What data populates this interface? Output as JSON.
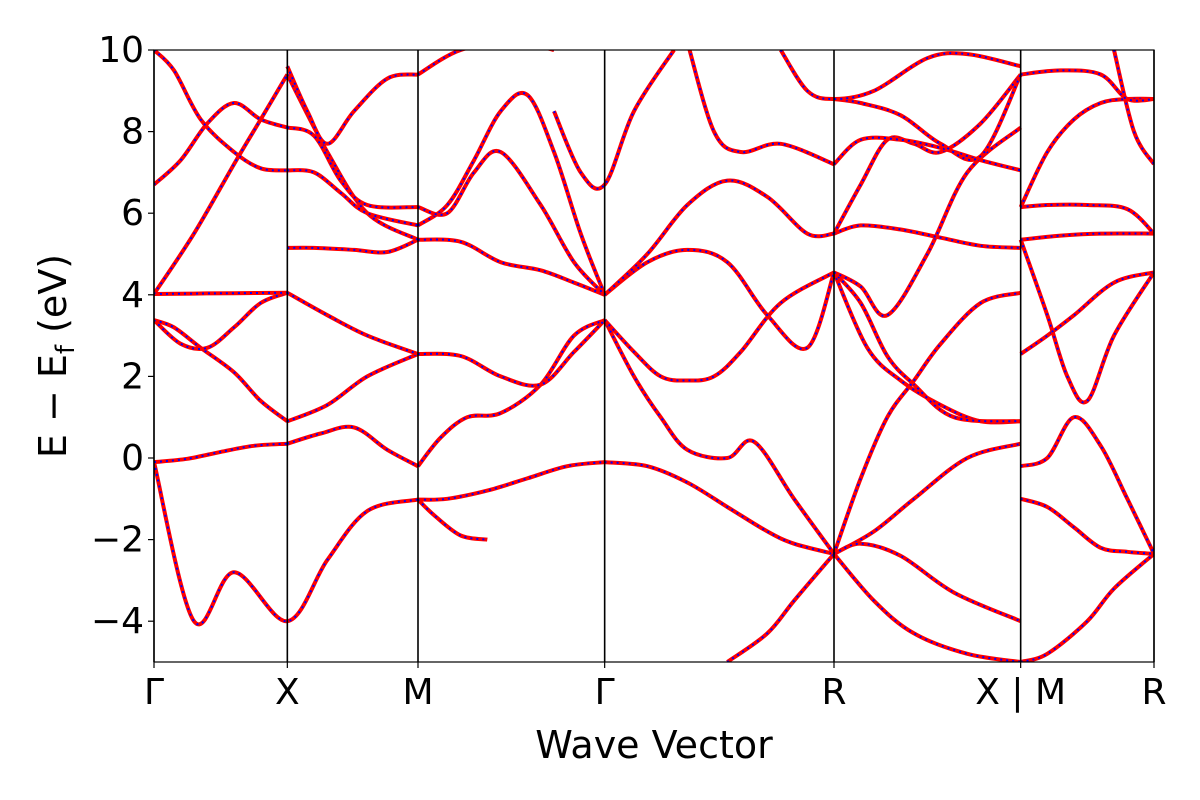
{
  "chart_data": {
    "type": "line",
    "xlabel": "Wave Vector",
    "ylabel_parts": {
      "main": "E − E",
      "sub": "f",
      "unit": " (eV)"
    },
    "ylim": [
      -5,
      10
    ],
    "yticks": [
      -4,
      -2,
      0,
      2,
      4,
      6,
      8,
      10
    ],
    "ytick_labels": [
      "−4",
      "−2",
      "0",
      "2",
      "4",
      "6",
      "8",
      "10"
    ],
    "xlim": [
      0,
      7.5
    ],
    "high_symmetry_points": [
      {
        "label": "Γ",
        "x": 0
      },
      {
        "label": "X",
        "x": 1.0
      },
      {
        "label": "M",
        "x": 1.98
      },
      {
        "label": "Γ",
        "x": 3.38
      },
      {
        "label": "R",
        "x": 5.1
      },
      {
        "label": "X | M",
        "x": 6.5
      },
      {
        "label": "R",
        "x": 7.5
      }
    ],
    "grid": false,
    "series_colors": {
      "overlay": "#ff0000",
      "dashed": "#0000ff"
    },
    "series": [
      {
        "x": [
          0,
          0.3,
          0.6,
          1.0,
          1.3,
          1.6,
          1.98
        ],
        "y": [
          -0.1,
          -4.0,
          -2.8,
          -4.0,
          -2.5,
          -1.3,
          -1.02
        ]
      },
      {
        "x": [
          0,
          0.25,
          0.5,
          0.75,
          1.0
        ],
        "y": [
          -0.1,
          -0.02,
          0.15,
          0.3,
          0.35
        ]
      },
      {
        "x": [
          1.0,
          1.25,
          1.5,
          1.75,
          1.98
        ],
        "y": [
          0.35,
          0.6,
          0.75,
          0.2,
          -0.2
        ]
      },
      {
        "x": [
          1.98,
          2.15,
          2.35,
          2.6,
          2.9,
          3.15,
          3.38
        ],
        "y": [
          -0.2,
          0.5,
          1.0,
          1.1,
          1.8,
          3.0,
          3.38
        ]
      },
      {
        "x": [
          1.98,
          2.2,
          2.5,
          2.8,
          3.1,
          3.38
        ],
        "y": [
          -1.02,
          -1.0,
          -0.8,
          -0.5,
          -0.2,
          -0.1
        ]
      },
      {
        "x": [
          1.98,
          2.1,
          2.3,
          2.5
        ],
        "y": [
          -1.02,
          -1.4,
          -1.9,
          -2.0
        ]
      },
      {
        "x": [
          0,
          0.15,
          0.35,
          0.6,
          0.8,
          1.0
        ],
        "y": [
          3.38,
          3.2,
          2.7,
          2.1,
          1.4,
          0.9
        ]
      },
      {
        "x": [
          1.0,
          1.3,
          1.6,
          1.98
        ],
        "y": [
          0.9,
          1.3,
          2.0,
          2.55
        ]
      },
      {
        "x": [
          1.98,
          2.3,
          2.6,
          2.9,
          3.15,
          3.38
        ],
        "y": [
          2.55,
          2.5,
          2.0,
          1.8,
          2.6,
          3.38
        ]
      },
      {
        "x": [
          0,
          0.2,
          0.4,
          0.6,
          0.8,
          1.0
        ],
        "y": [
          3.38,
          2.8,
          2.7,
          3.2,
          3.8,
          4.05
        ]
      },
      {
        "x": [
          0,
          0.3,
          0.6,
          1.0
        ],
        "y": [
          4.02,
          4.03,
          4.04,
          4.05
        ]
      },
      {
        "x": [
          1.0,
          1.3,
          1.6,
          1.98
        ],
        "y": [
          4.05,
          3.5,
          3.0,
          2.55
        ]
      },
      {
        "x": [
          1.0,
          1.2,
          1.5,
          1.75,
          1.98
        ],
        "y": [
          5.15,
          5.15,
          5.1,
          5.05,
          5.35
        ]
      },
      {
        "x": [
          1.98,
          2.3,
          2.6,
          2.9,
          3.15,
          3.38
        ],
        "y": [
          5.35,
          5.3,
          4.8,
          4.6,
          4.3,
          4.0
        ]
      },
      {
        "x": [
          0,
          0.3,
          0.6,
          0.8,
          1.0
        ],
        "y": [
          4.02,
          5.5,
          7.2,
          8.3,
          9.4
        ]
      },
      {
        "x": [
          1.0,
          1.3,
          1.6,
          1.98
        ],
        "y": [
          9.4,
          7.5,
          6.0,
          5.35
        ]
      },
      {
        "x": [
          0,
          0.2,
          0.4,
          0.6,
          0.8,
          1.0
        ],
        "y": [
          6.7,
          7.3,
          8.2,
          8.7,
          8.3,
          8.1
        ]
      },
      {
        "x": [
          1.0,
          1.2,
          1.4,
          1.6,
          1.98
        ],
        "y": [
          8.1,
          7.9,
          6.8,
          6.2,
          6.15
        ]
      },
      {
        "x": [
          0,
          0.15,
          0.35,
          0.6,
          0.8,
          1.0
        ],
        "y": [
          10.0,
          9.5,
          8.3,
          7.5,
          7.1,
          7.05
        ]
      },
      {
        "x": [
          1.0,
          1.2,
          1.4,
          1.6,
          1.98
        ],
        "y": [
          7.05,
          7.0,
          6.5,
          6.0,
          5.7
        ]
      },
      {
        "x": [
          1.98,
          2.2,
          2.4,
          2.6,
          2.8,
          3.0,
          3.2,
          3.38
        ],
        "y": [
          5.7,
          6.2,
          7.3,
          8.5,
          8.9,
          7.5,
          5.5,
          4.0
        ]
      },
      {
        "x": [
          1.98,
          2.2,
          2.4,
          2.6,
          2.9,
          3.15,
          3.38
        ],
        "y": [
          6.15,
          6.0,
          7.0,
          7.5,
          6.2,
          4.8,
          4.0
        ]
      },
      {
        "x": [
          1.0,
          1.15,
          1.3,
          1.5,
          1.75,
          1.98
        ],
        "y": [
          9.6,
          8.5,
          7.7,
          8.5,
          9.3,
          9.4
        ]
      },
      {
        "x": [
          1.98,
          2.3,
          2.7,
          3.0
        ],
        "y": [
          9.4,
          10.0,
          10.2,
          10.0
        ]
      },
      {
        "x": [
          3.0,
          3.2,
          3.38,
          3.6,
          3.9
        ],
        "y": [
          8.5,
          7.0,
          6.7,
          8.5,
          10.0
        ]
      },
      {
        "x": [
          4.0,
          4.2,
          4.4,
          4.7,
          5.1
        ],
        "y": [
          10.2,
          8.0,
          7.5,
          7.7,
          7.2
        ]
      },
      {
        "x": [
          3.38,
          3.7,
          4.0,
          4.3,
          4.6,
          4.8,
          5.1
        ],
        "y": [
          -0.1,
          -0.2,
          -0.6,
          -1.2,
          -1.8,
          -2.1,
          -2.35
        ]
      },
      {
        "x": [
          3.38,
          3.6,
          3.8,
          4.0,
          4.3,
          4.5,
          4.8,
          5.1
        ],
        "y": [
          3.38,
          2.0,
          1.0,
          0.2,
          0.0,
          0.4,
          -1.0,
          -2.35
        ]
      },
      {
        "x": [
          3.38,
          3.6,
          3.8,
          4.0,
          4.2,
          4.4,
          4.7,
          5.1
        ],
        "y": [
          3.38,
          2.6,
          2.0,
          1.9,
          2.0,
          2.6,
          3.8,
          4.55
        ]
      },
      {
        "x": [
          3.38,
          3.7,
          4.0,
          4.3,
          4.6,
          4.9,
          5.1
        ],
        "y": [
          4.0,
          4.8,
          5.1,
          4.8,
          3.5,
          2.7,
          4.55
        ]
      },
      {
        "x": [
          3.38,
          3.7,
          4.0,
          4.3,
          4.6,
          4.9,
          5.1
        ],
        "y": [
          4.0,
          5.0,
          6.2,
          6.8,
          6.4,
          5.5,
          5.5
        ]
      },
      {
        "x": [
          4.3,
          4.6,
          4.8,
          5.1
        ],
        "y": [
          -5.0,
          -4.3,
          -3.5,
          -2.35
        ]
      },
      {
        "x": [
          5.1,
          5.4,
          5.7,
          6.1,
          6.5
        ],
        "y": [
          -2.35,
          -3.5,
          -4.3,
          -4.8,
          -5.0
        ]
      },
      {
        "x": [
          5.1,
          5.4,
          5.7,
          6.1,
          6.5
        ],
        "y": [
          -2.35,
          -1.8,
          -1.0,
          0.0,
          0.35
        ]
      },
      {
        "x": [
          5.1,
          5.3,
          5.6,
          6.0,
          6.5
        ],
        "y": [
          -2.35,
          -2.1,
          -2.4,
          -3.3,
          -4.0
        ]
      },
      {
        "x": [
          5.1,
          5.35,
          5.6,
          5.9,
          6.2,
          6.5
        ],
        "y": [
          4.55,
          2.7,
          1.9,
          1.3,
          0.9,
          0.9
        ]
      },
      {
        "x": [
          5.1,
          5.3,
          5.5,
          5.7,
          6.0,
          6.5
        ],
        "y": [
          4.55,
          3.8,
          2.5,
          1.8,
          1.0,
          0.9
        ]
      },
      {
        "x": [
          5.1,
          5.3,
          5.5,
          5.7,
          5.9,
          6.2,
          6.5
        ],
        "y": [
          -2.35,
          -0.5,
          1.0,
          1.9,
          2.8,
          3.8,
          4.05
        ]
      },
      {
        "x": [
          5.1,
          5.3,
          5.5,
          5.8,
          6.1,
          6.5
        ],
        "y": [
          4.55,
          4.2,
          3.5,
          5.0,
          7.0,
          8.1
        ]
      },
      {
        "x": [
          5.1,
          5.3,
          5.6,
          5.9,
          6.2,
          6.5
        ],
        "y": [
          5.5,
          5.7,
          5.6,
          5.4,
          5.2,
          5.15
        ]
      },
      {
        "x": [
          5.1,
          5.3,
          5.5,
          5.7,
          5.9,
          6.2,
          6.5
        ],
        "y": [
          5.5,
          6.7,
          7.8,
          7.7,
          7.5,
          8.2,
          9.4
        ]
      },
      {
        "x": [
          5.1,
          5.3,
          5.6,
          5.9,
          6.2,
          6.5
        ],
        "y": [
          7.2,
          7.8,
          7.8,
          7.6,
          7.3,
          7.05
        ]
      },
      {
        "x": [
          5.1,
          5.3,
          5.6,
          5.9,
          6.2,
          6.5
        ],
        "y": [
          8.8,
          8.7,
          8.4,
          7.7,
          7.4,
          9.4
        ]
      },
      {
        "x": [
          4.7,
          4.9,
          5.1,
          5.4,
          5.8,
          6.1,
          6.5
        ],
        "y": [
          10.0,
          9.0,
          8.8,
          9.0,
          9.8,
          9.9,
          9.6
        ]
      },
      {
        "x": [
          6.5,
          6.7,
          7.0,
          7.2,
          7.5
        ],
        "y": [
          -5.0,
          -4.8,
          -4.0,
          -3.2,
          -2.35
        ]
      },
      {
        "x": [
          6.5,
          6.7,
          6.9,
          7.1,
          7.3,
          7.5
        ],
        "y": [
          -1.0,
          -1.2,
          -1.7,
          -2.2,
          -2.3,
          -2.35
        ]
      },
      {
        "x": [
          6.5,
          6.7,
          6.9,
          7.1,
          7.3,
          7.5
        ],
        "y": [
          -0.2,
          0.0,
          1.0,
          0.3,
          -1.0,
          -2.35
        ]
      },
      {
        "x": [
          6.5,
          6.7,
          6.9,
          7.2,
          7.5
        ],
        "y": [
          2.55,
          3.0,
          3.5,
          4.3,
          4.55
        ]
      },
      {
        "x": [
          6.5,
          6.7,
          6.85,
          7.0,
          7.2,
          7.5
        ],
        "y": [
          5.35,
          3.5,
          2.0,
          1.4,
          3.0,
          4.55
        ]
      },
      {
        "x": [
          6.5,
          6.8,
          7.1,
          7.5
        ],
        "y": [
          5.35,
          5.45,
          5.5,
          5.5
        ]
      },
      {
        "x": [
          6.5,
          6.7,
          7.0,
          7.3,
          7.5
        ],
        "y": [
          6.15,
          6.2,
          6.2,
          6.1,
          5.5
        ]
      },
      {
        "x": [
          6.5,
          6.7,
          6.9,
          7.1,
          7.3,
          7.5
        ],
        "y": [
          6.15,
          7.5,
          8.3,
          8.7,
          8.8,
          8.8
        ]
      },
      {
        "x": [
          6.5,
          6.8,
          7.1,
          7.3,
          7.5
        ],
        "y": [
          9.4,
          9.5,
          9.4,
          8.8,
          8.8
        ]
      },
      {
        "x": [
          7.2,
          7.35,
          7.5
        ],
        "y": [
          10.0,
          8.0,
          7.2
        ]
      }
    ]
  }
}
